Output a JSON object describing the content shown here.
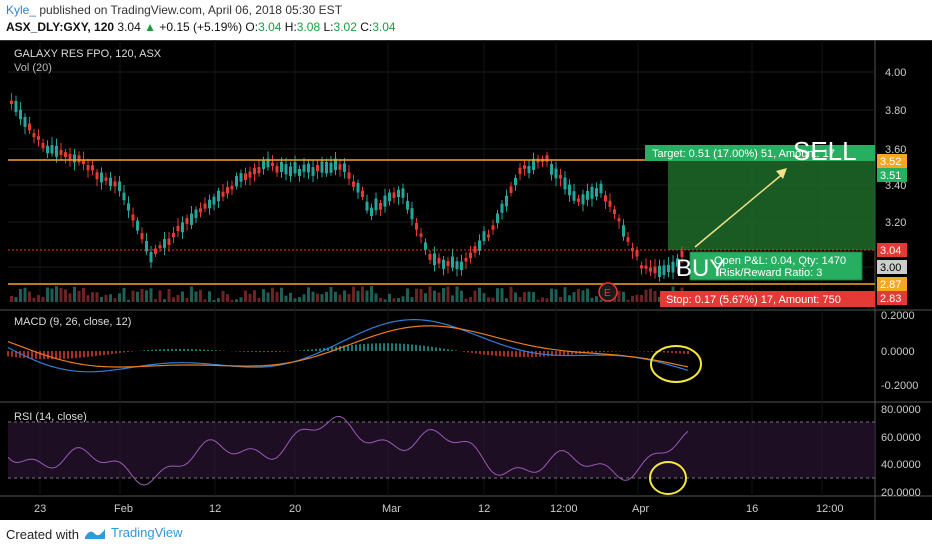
{
  "header": {
    "author": "Kyle_",
    "published": "published on TradingView.com, April 06, 2018 05:30 EST",
    "symbol": "ASX_DLY:GXY, 120",
    "last": "3.04",
    "change": "+0.15 (+5.19%)",
    "ohlc": {
      "o_label": "O:",
      "o": "3.04",
      "h_label": "H:",
      "h": "3.08",
      "l_label": "L:",
      "l": "3.02",
      "c_label": "C:",
      "c": "3.04"
    }
  },
  "chart": {
    "title": "GALAXY RES FPO, 120, ASX",
    "volume_label": "Vol (20)",
    "price_ticks": [
      "4.00",
      "3.80",
      "3.60",
      "3.40",
      "3.20",
      "3.00"
    ],
    "price_tags": [
      {
        "label": "3.52",
        "color": "#f5a623"
      },
      {
        "label": "3.51",
        "color": "#27ae60"
      },
      {
        "label": "3.04",
        "color": "#e53935"
      },
      {
        "label": "3.00",
        "color": "#cccccc"
      },
      {
        "label": "2.87",
        "color": "#f5a623"
      },
      {
        "label": "2.83",
        "color": "#e53935"
      }
    ],
    "target_text": "Target: 0.51 (17.00%) 51, Amount: 17",
    "open_text": "Open P&L: 0.04, Qty: 1470",
    "ratio_text": "Risk/Reward Ratio: 3",
    "stop_text": "Stop: 0.17 (5.67%) 17, Amount: 750",
    "sell_label": "SELL",
    "buy_label": "BUY",
    "earnings_label": "E",
    "macd_label": "MACD (9, 26, close, 12)",
    "macd_ticks": [
      "0.2000",
      "0.0000",
      "-0.2000"
    ],
    "rsi_label": "RSI (14, close)",
    "rsi_ticks": [
      "80.0000",
      "60.0000",
      "40.0000",
      "20.0000"
    ],
    "x_ticks": [
      "23",
      "Feb",
      "12",
      "20",
      "Mar",
      "12",
      "12:00",
      "Apr",
      "16",
      "12:00"
    ],
    "colors": {
      "up": "#26a69a",
      "down": "#e53935",
      "target_zone": "#1e6b2a",
      "stop_zone": "#5c1a1a",
      "macd": "#2f7ed8",
      "signal": "#e67e22",
      "rsi": "#9b59b6"
    }
  },
  "footer": {
    "created": "Created with",
    "brand": "TradingView",
    "brand_icon": "tradingview-logo-icon"
  }
}
